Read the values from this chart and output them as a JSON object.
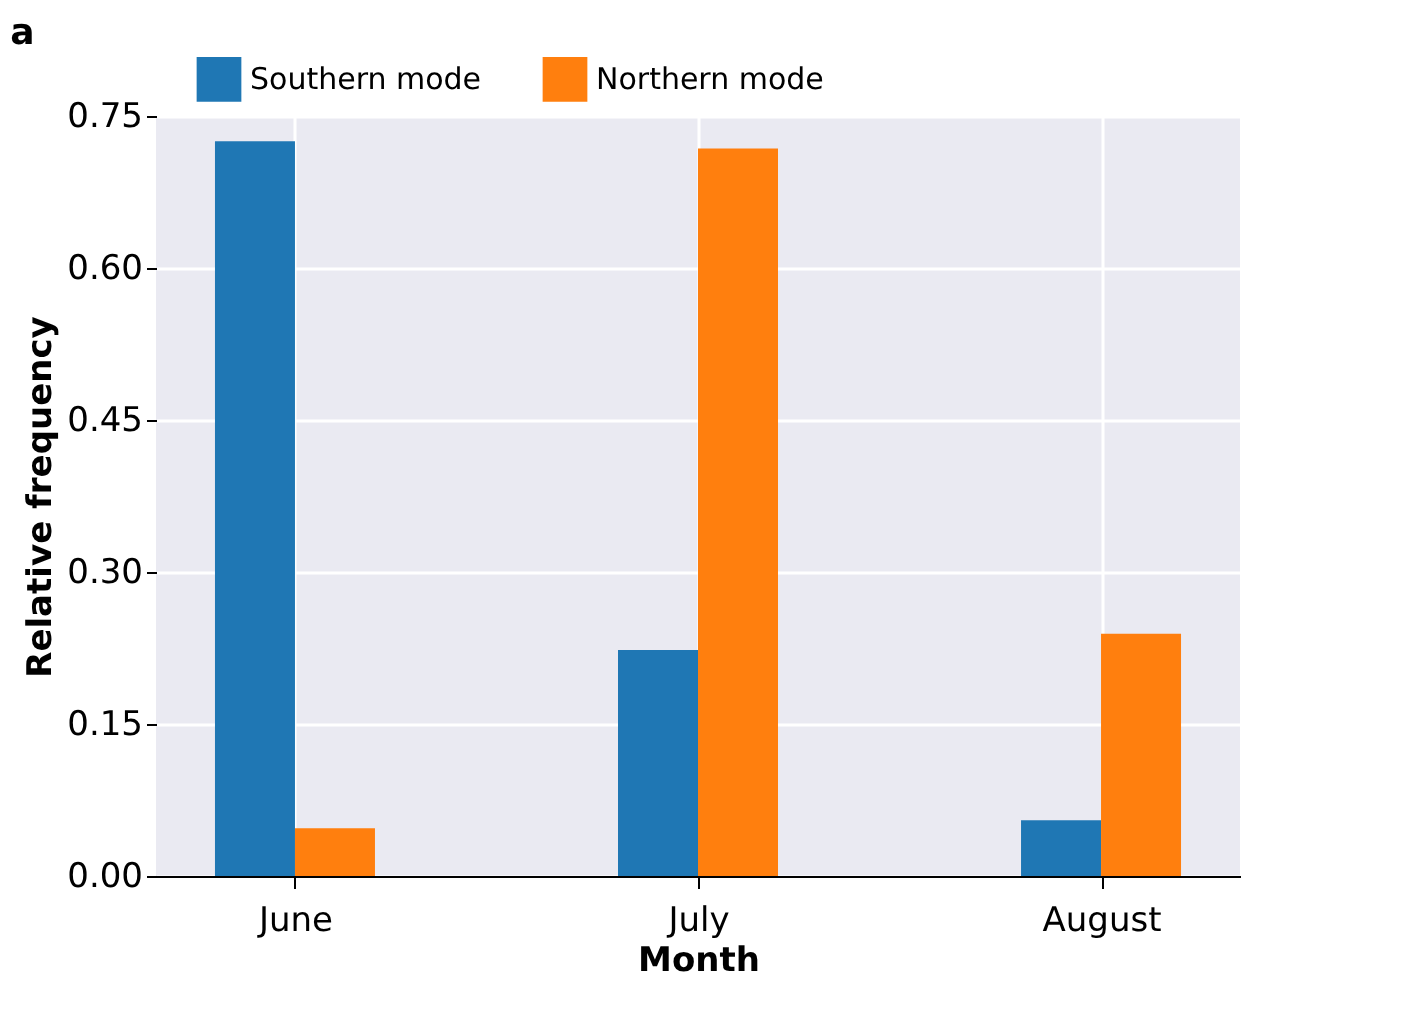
{
  "chart_data": {
    "type": "bar",
    "title": "a",
    "xlabel": "Month",
    "ylabel": "Relative frequency",
    "categories": [
      "June",
      "July",
      "August"
    ],
    "series": [
      {
        "name": "Southern mode",
        "color": "#1f77b4",
        "values": [
          0.725,
          0.223,
          0.055
        ]
      },
      {
        "name": "Northern mode",
        "color": "#ff7f0e",
        "values": [
          0.047,
          0.718,
          0.239
        ]
      }
    ],
    "ylim": [
      0,
      0.75
    ],
    "yticks": [
      {
        "value": 0,
        "label": "0.00"
      },
      0.15,
      {
        "value": 0.3,
        "label": "0.30"
      },
      0.45,
      {
        "value": 0.6,
        "label": "0.60"
      },
      0.75
    ],
    "grid": true,
    "legend": "top"
  }
}
